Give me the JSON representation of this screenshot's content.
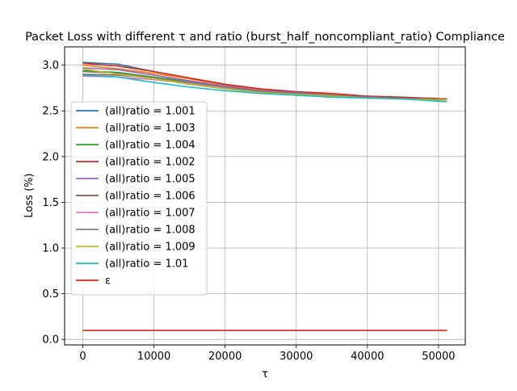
{
  "chart_data": {
    "type": "line",
    "title": "Packet Loss with different τ and ratio (burst_half_noncompliant_ratio) Compliance",
    "xlabel": "τ",
    "ylabel": "Loss (%)",
    "xlim": [
      -2560,
      53760
    ],
    "ylim": [
      -0.06,
      3.2
    ],
    "xticks": [
      0,
      10000,
      20000,
      30000,
      40000,
      50000
    ],
    "xtick_labels": [
      "0",
      "10000",
      "20000",
      "30000",
      "40000",
      "50000"
    ],
    "yticks": [
      0.0,
      0.5,
      1.0,
      1.5,
      2.0,
      2.5,
      3.0
    ],
    "ytick_labels": [
      "0.0",
      "0.5",
      "1.0",
      "1.5",
      "2.0",
      "2.5",
      "3.0"
    ],
    "grid": true,
    "legend_position": "center-left",
    "series": [
      {
        "name": "(all)ratio = 1.001",
        "color": "#1f77b4",
        "x": [
          0,
          5000,
          10000,
          15000,
          20000,
          25000,
          30000,
          35000,
          40000,
          45000,
          51200
        ],
        "y": [
          3.03,
          3.01,
          2.93,
          2.86,
          2.79,
          2.74,
          2.71,
          2.68,
          2.66,
          2.64,
          2.63
        ]
      },
      {
        "name": "(all)ratio = 1.003",
        "color": "#ff7f0e",
        "x": [
          0,
          5000,
          10000,
          15000,
          20000,
          25000,
          30000,
          35000,
          40000,
          45000,
          51200
        ],
        "y": [
          3.0,
          2.96,
          2.91,
          2.85,
          2.78,
          2.73,
          2.7,
          2.68,
          2.66,
          2.64,
          2.63
        ]
      },
      {
        "name": "(all)ratio = 1.004",
        "color": "#2ca02c",
        "x": [
          0,
          5000,
          10000,
          15000,
          20000,
          25000,
          30000,
          35000,
          40000,
          45000,
          51200
        ],
        "y": [
          2.94,
          2.92,
          2.87,
          2.82,
          2.76,
          2.72,
          2.69,
          2.67,
          2.65,
          2.64,
          2.63
        ]
      },
      {
        "name": "(all)ratio = 1.002",
        "color": "#d62728",
        "x": [
          0,
          5000,
          10000,
          15000,
          20000,
          25000,
          30000,
          35000,
          40000,
          45000,
          51200
        ],
        "y": [
          3.02,
          2.99,
          2.93,
          2.86,
          2.79,
          2.74,
          2.71,
          2.69,
          2.66,
          2.65,
          2.63
        ]
      },
      {
        "name": "(all)ratio = 1.005",
        "color": "#9467bd",
        "x": [
          0,
          5000,
          10000,
          15000,
          20000,
          25000,
          30000,
          35000,
          40000,
          45000,
          51200
        ],
        "y": [
          2.97,
          2.95,
          2.89,
          2.83,
          2.77,
          2.72,
          2.7,
          2.67,
          2.65,
          2.64,
          2.62
        ]
      },
      {
        "name": "(all)ratio = 1.006",
        "color": "#8c564b",
        "x": [
          0,
          5000,
          10000,
          15000,
          20000,
          25000,
          30000,
          35000,
          40000,
          45000,
          51200
        ],
        "y": [
          2.9,
          2.89,
          2.86,
          2.81,
          2.76,
          2.71,
          2.69,
          2.67,
          2.65,
          2.64,
          2.62
        ]
      },
      {
        "name": "(all)ratio = 1.007",
        "color": "#e377c2",
        "x": [
          0,
          5000,
          10000,
          15000,
          20000,
          25000,
          30000,
          35000,
          40000,
          45000,
          51200
        ],
        "y": [
          2.88,
          2.87,
          2.84,
          2.8,
          2.75,
          2.71,
          2.68,
          2.66,
          2.65,
          2.63,
          2.62
        ]
      },
      {
        "name": "(all)ratio = 1.008",
        "color": "#7f7f7f",
        "x": [
          0,
          5000,
          10000,
          15000,
          20000,
          25000,
          30000,
          35000,
          40000,
          45000,
          51200
        ],
        "y": [
          2.93,
          2.91,
          2.86,
          2.81,
          2.76,
          2.71,
          2.69,
          2.67,
          2.65,
          2.63,
          2.62
        ]
      },
      {
        "name": "(all)ratio = 1.009",
        "color": "#bcbd22",
        "x": [
          0,
          5000,
          10000,
          15000,
          20000,
          25000,
          30000,
          35000,
          40000,
          45000,
          51200
        ],
        "y": [
          2.96,
          2.9,
          2.85,
          2.79,
          2.74,
          2.7,
          2.68,
          2.66,
          2.64,
          2.63,
          2.62
        ]
      },
      {
        "name": "(all)ratio = 1.01",
        "color": "#17becf",
        "x": [
          0,
          5000,
          10000,
          15000,
          20000,
          25000,
          30000,
          35000,
          40000,
          45000,
          51200
        ],
        "y": [
          2.89,
          2.87,
          2.81,
          2.76,
          2.72,
          2.69,
          2.67,
          2.65,
          2.64,
          2.63,
          2.6
        ]
      },
      {
        "name": "ε",
        "color": "#e0201a",
        "x": [
          0,
          51200
        ],
        "y": [
          0.1,
          0.1
        ]
      }
    ]
  }
}
